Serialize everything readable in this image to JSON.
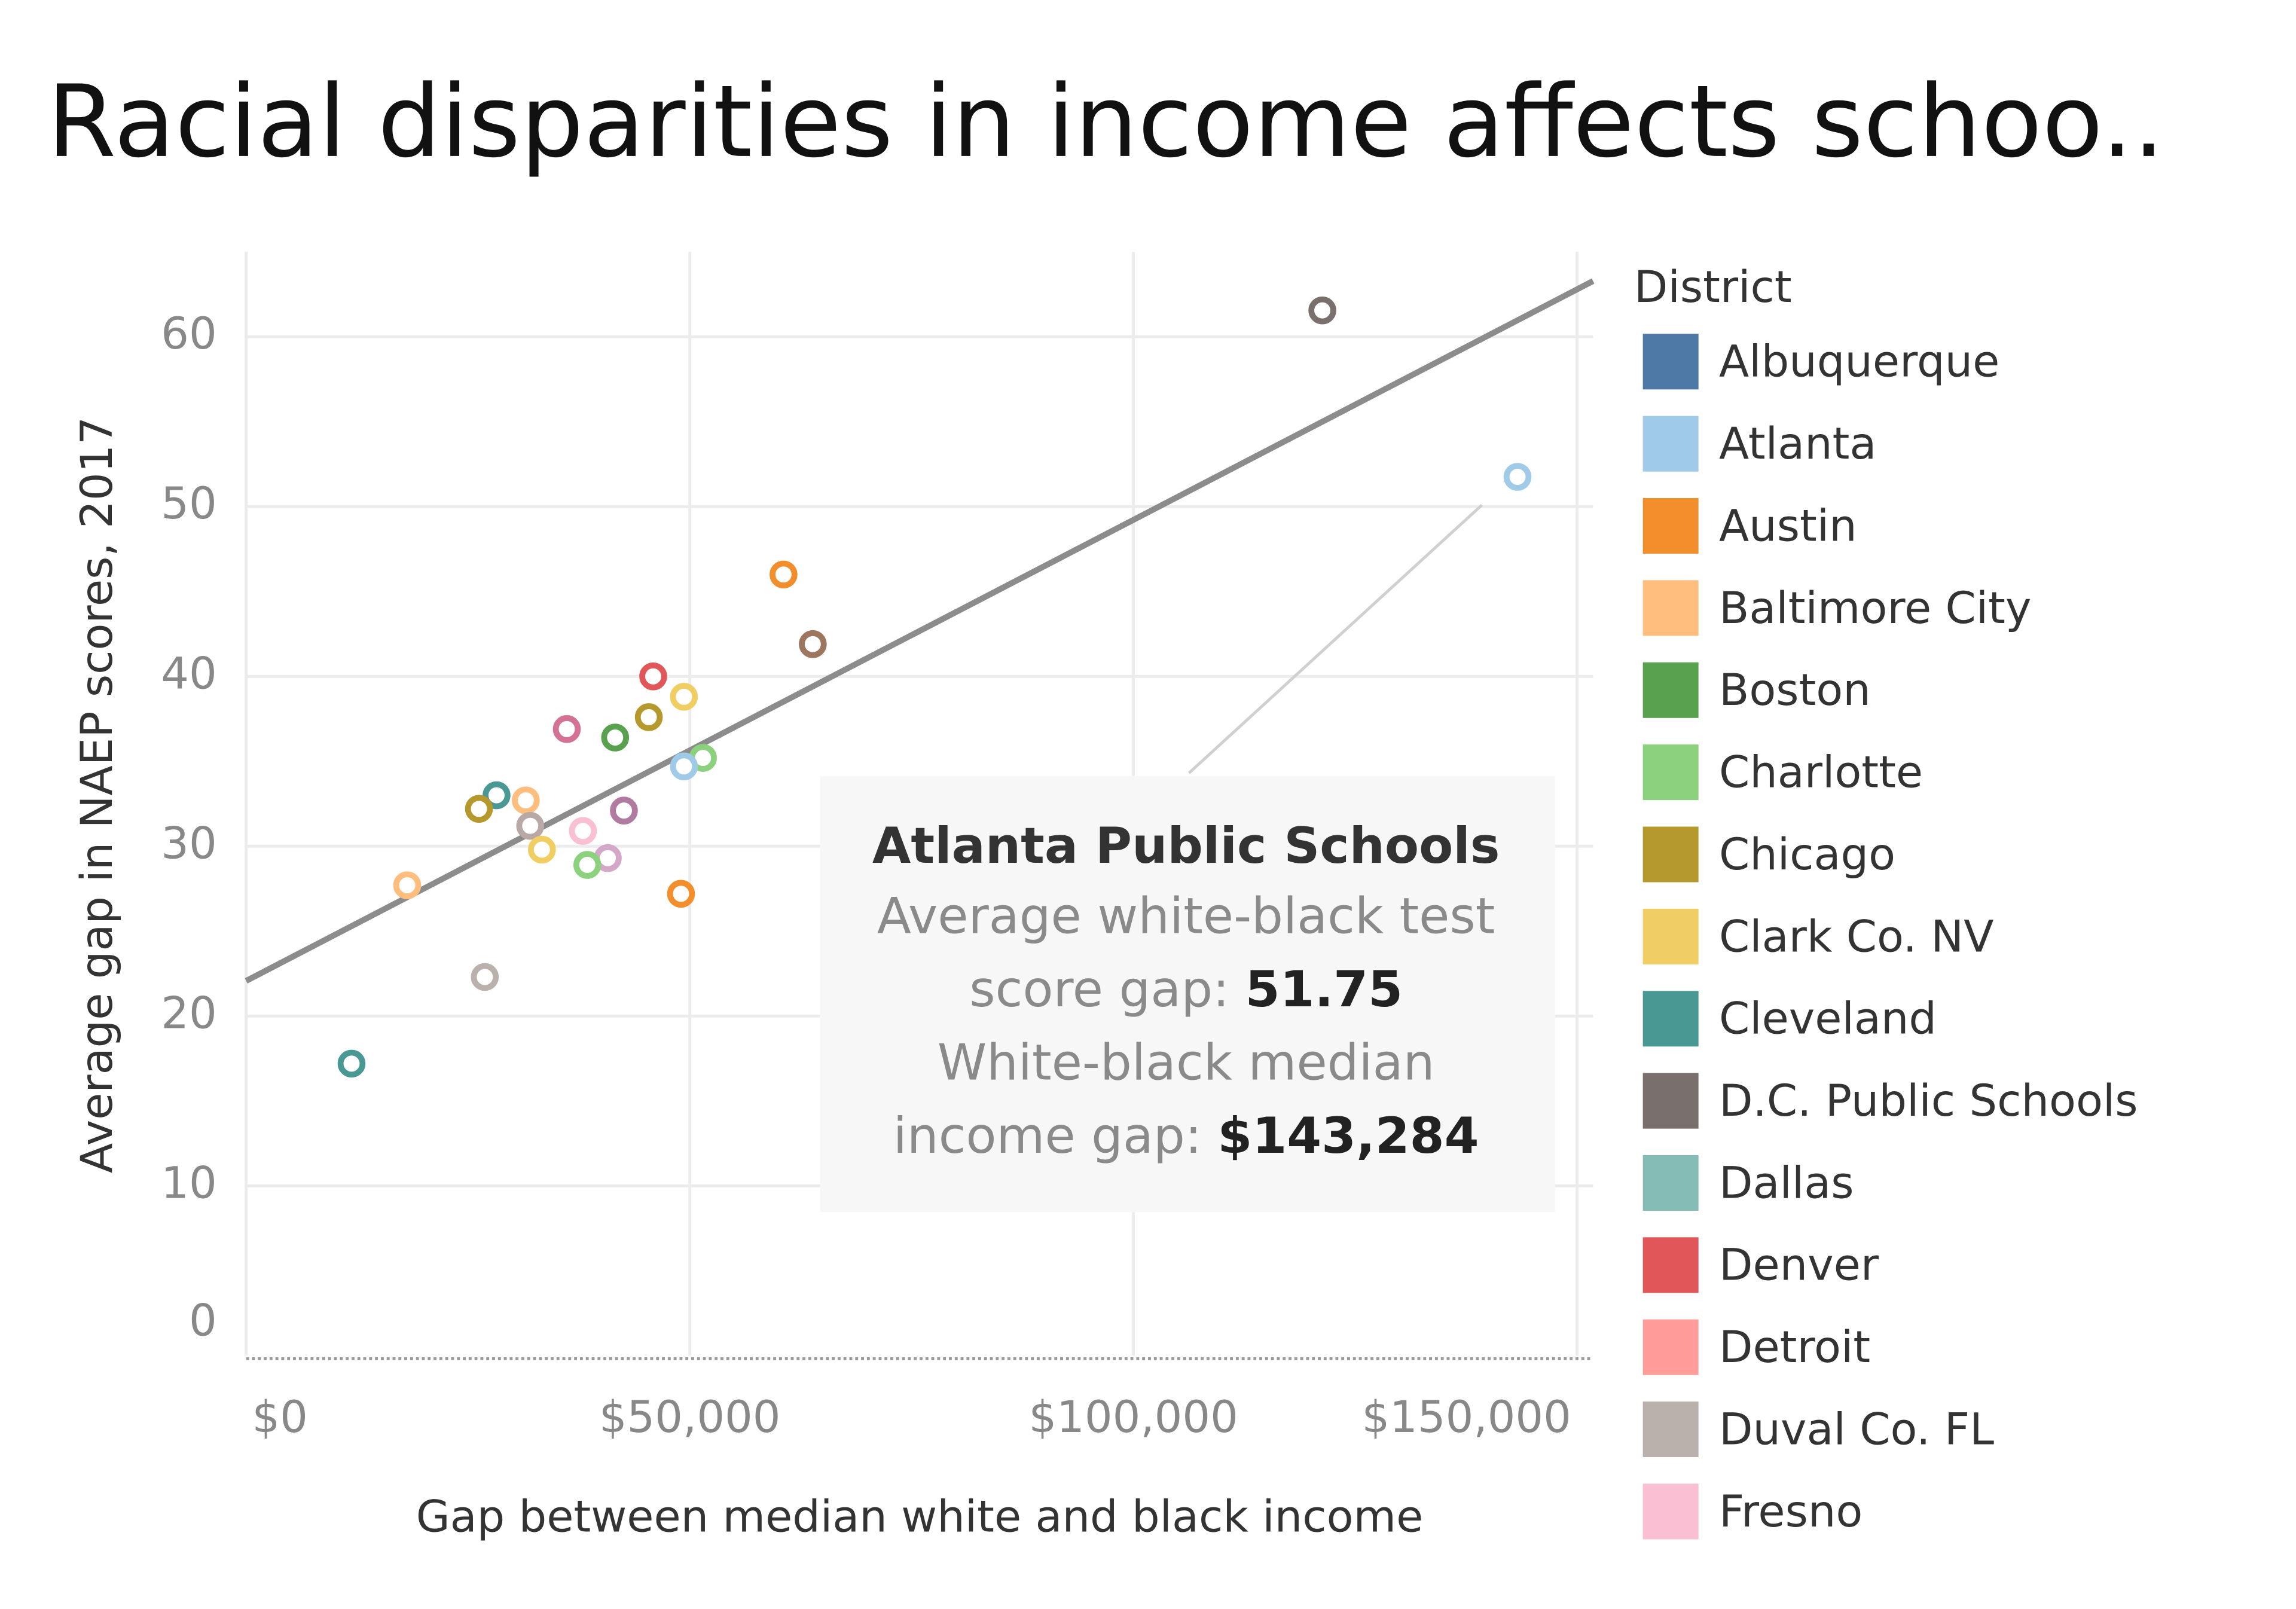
{
  "chart_data": {
    "type": "scatter",
    "title": "Racial disparities in income affects schoo..",
    "x_label": "Gap between median white and black income",
    "y_label": "Average gap in NAEP scores, 2017",
    "xlim": [
      0,
      151800
    ],
    "ylim": [
      0,
      65
    ],
    "xticks": [
      {
        "value": 0,
        "label": "$0"
      },
      {
        "value": 50000,
        "label": "$50,000"
      },
      {
        "value": 100000,
        "label": "$100,000"
      },
      {
        "value": 150000,
        "label": "$150,000"
      }
    ],
    "yticks": [
      0,
      10,
      20,
      30,
      40,
      50,
      60
    ],
    "grid": true,
    "points": {
      "x": [
        121287,
        143284,
        60561,
        63861,
        45875,
        49340,
        45380,
        36139,
        41584,
        51485,
        49340,
        28218,
        31518,
        26238,
        42574,
        32013,
        37953,
        33333,
        40759,
        38449,
        18152,
        49010,
        26898,
        11881
      ],
      "y": [
        61.55,
        51.75,
        46.0,
        41.9,
        40.0,
        38.8,
        37.6,
        36.9,
        36.4,
        35.2,
        34.7,
        33.0,
        32.7,
        32.2,
        32.1,
        31.2,
        30.9,
        29.8,
        29.3,
        28.9,
        27.7,
        27.2,
        22.3,
        17.2
      ],
      "colors": [
        "#79706e",
        "#a0cbe8",
        "#f28e2b",
        "#9d7660",
        "#e15759",
        "#f1ce63",
        "#b6992d",
        "#d37295",
        "#59a14f",
        "#8cd17d",
        "#a0cbe8",
        "#499894",
        "#ffbe7d",
        "#b6992d",
        "#b07aa1",
        "#b9a9a6",
        "#fabfd2",
        "#f1ce63",
        "#d4a6c8",
        "#8cd17d",
        "#ffbe7d",
        "#f28e2b",
        "#bab0ac",
        "#499894"
      ]
    },
    "trend_line": {
      "x": [
        0,
        151800
      ],
      "y": [
        22.07,
        63.28
      ],
      "color": "#8c8c8c"
    },
    "legend": {
      "title": "District",
      "items": [
        {
          "name": "Albuquerque",
          "color": "#4e79a7"
        },
        {
          "name": "Atlanta",
          "color": "#a0cbe8"
        },
        {
          "name": "Austin",
          "color": "#f28e2b"
        },
        {
          "name": "Baltimore City",
          "color": "#ffbe7d"
        },
        {
          "name": "Boston",
          "color": "#59a14f"
        },
        {
          "name": "Charlotte",
          "color": "#8cd17d"
        },
        {
          "name": "Chicago",
          "color": "#b6992d"
        },
        {
          "name": "Clark Co. NV",
          "color": "#f1ce63"
        },
        {
          "name": "Cleveland",
          "color": "#499894"
        },
        {
          "name": "D.C. Public Schools",
          "color": "#79706e"
        },
        {
          "name": "Dallas",
          "color": "#86bcb6"
        },
        {
          "name": "Denver",
          "color": "#e15759"
        },
        {
          "name": "Detroit",
          "color": "#ff9d9a"
        },
        {
          "name": "Duval Co. FL",
          "color": "#bab0ac"
        },
        {
          "name": "Fresno",
          "color": "#fabfd2"
        }
      ]
    },
    "tooltip": {
      "title": "Atlanta Public Schools",
      "lines": [
        {
          "text": "Average white-black test"
        },
        {
          "text": "score gap: ",
          "value": "51.75"
        },
        {
          "text": "White-black median"
        },
        {
          "text": "income gap: ",
          "value": "$143,284"
        }
      ]
    }
  }
}
